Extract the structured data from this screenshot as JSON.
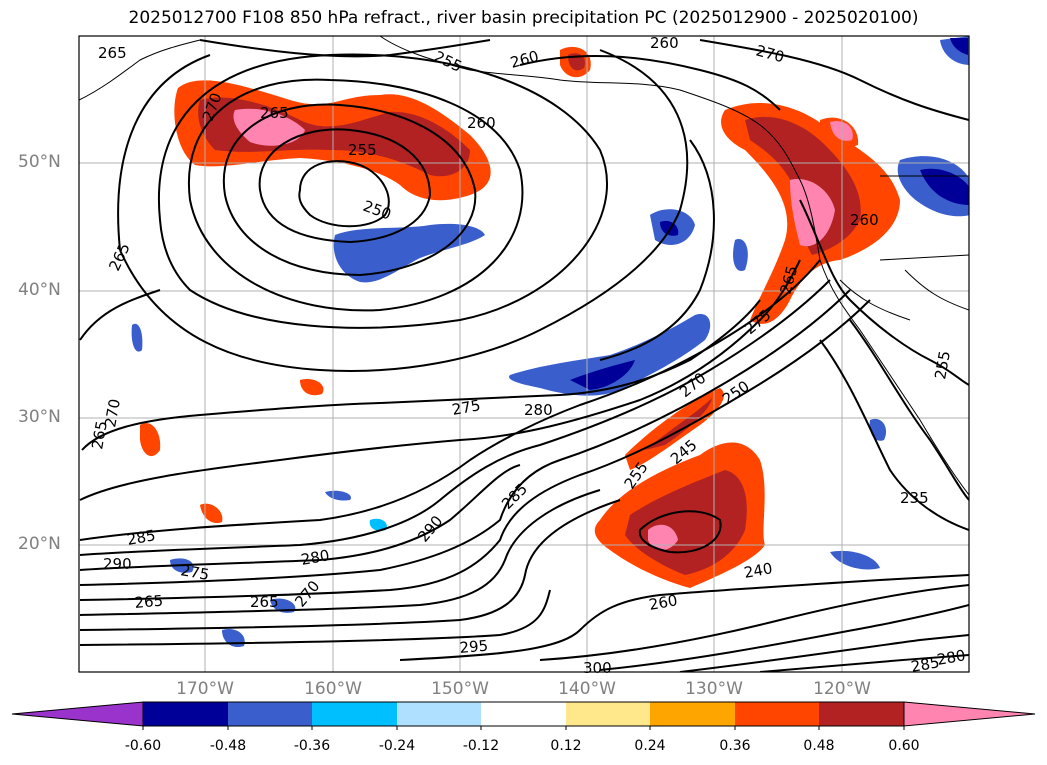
{
  "title": "2025012700 F108 850 hPa refract., river basin precipitation PC (2025012900 - 2025020100)",
  "lat_labels": [
    "50°N",
    "40°N",
    "30°N",
    "20°N"
  ],
  "lon_labels": [
    "170°W",
    "160°W",
    "150°W",
    "140°W",
    "130°W",
    "120°W"
  ],
  "colorbar": {
    "tick_labels": [
      "-0.60",
      "-0.48",
      "-0.36",
      "-0.24",
      "-0.12",
      "0.12",
      "0.24",
      "0.36",
      "0.48",
      "0.60"
    ],
    "colors": [
      "#9933cc",
      "#000099",
      "#3a5fcd",
      "#00bfff",
      "#b0e0ff",
      "#ffffff",
      "#ffe88c",
      "#ffa500",
      "#ff4500",
      "#b22222",
      "#ff85b0"
    ]
  },
  "contour_labels": [
    "265",
    "270",
    "265",
    "255",
    "260",
    "260",
    "270",
    "255",
    "250",
    "260",
    "265",
    "265",
    "270",
    "275",
    "280",
    "270",
    "250",
    "245",
    "255",
    "285",
    "290",
    "285",
    "290",
    "275",
    "280",
    "265",
    "265",
    "270",
    "295",
    "300",
    "240",
    "260",
    "235",
    "255",
    "265",
    "285",
    "260",
    "275",
    "280"
  ]
}
